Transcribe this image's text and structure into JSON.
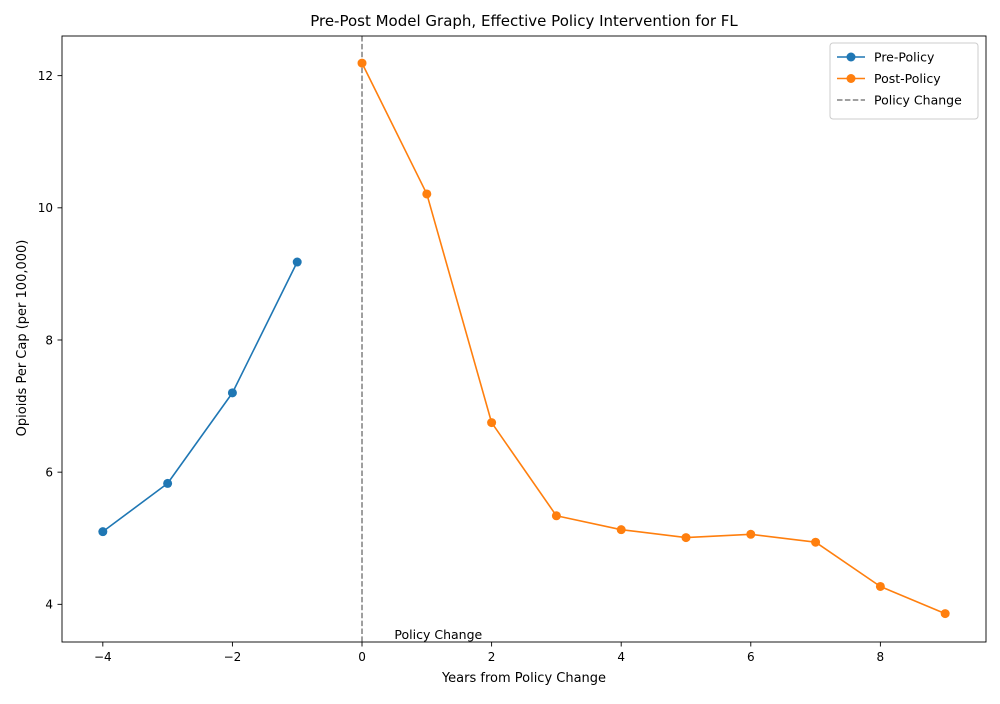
{
  "chart_data": {
    "type": "line",
    "title": "Pre-Post Model Graph, Effective Policy Intervention for FL",
    "xlabel": "Years from Policy Change",
    "ylabel": "Opioids Per Cap (per 100,000)",
    "xlim": [
      -4.63,
      9.63
    ],
    "ylim": [
      3.43,
      12.6
    ],
    "x_ticks": [
      -4,
      -2,
      0,
      2,
      4,
      6,
      8
    ],
    "x_tick_labels": [
      "−4",
      "−2",
      "0",
      "2",
      "4",
      "6",
      "8"
    ],
    "y_ticks": [
      4,
      6,
      8,
      10,
      12
    ],
    "y_tick_labels": [
      "4",
      "6",
      "8",
      "10",
      "12"
    ],
    "grid": false,
    "legend_position": "top-right",
    "series": [
      {
        "name": "Pre-Policy",
        "color": "#1f77b4",
        "marker": "circle",
        "x": [
          -4,
          -3,
          -2,
          -1
        ],
        "y": [
          5.1,
          5.83,
          7.2,
          9.18
        ]
      },
      {
        "name": "Post-Policy",
        "color": "#ff7f0e",
        "marker": "circle",
        "x": [
          0,
          1,
          2,
          3,
          4,
          5,
          6,
          7,
          8,
          9
        ],
        "y": [
          12.19,
          10.21,
          6.75,
          5.34,
          5.13,
          5.01,
          5.06,
          4.94,
          4.27,
          3.86
        ]
      }
    ],
    "reference_line": {
      "name": "Policy Change",
      "x": 0,
      "style": "dashed",
      "color": "#808080"
    },
    "annotation": {
      "text": "Policy Change",
      "x": 0.5,
      "y": 3.43
    }
  }
}
